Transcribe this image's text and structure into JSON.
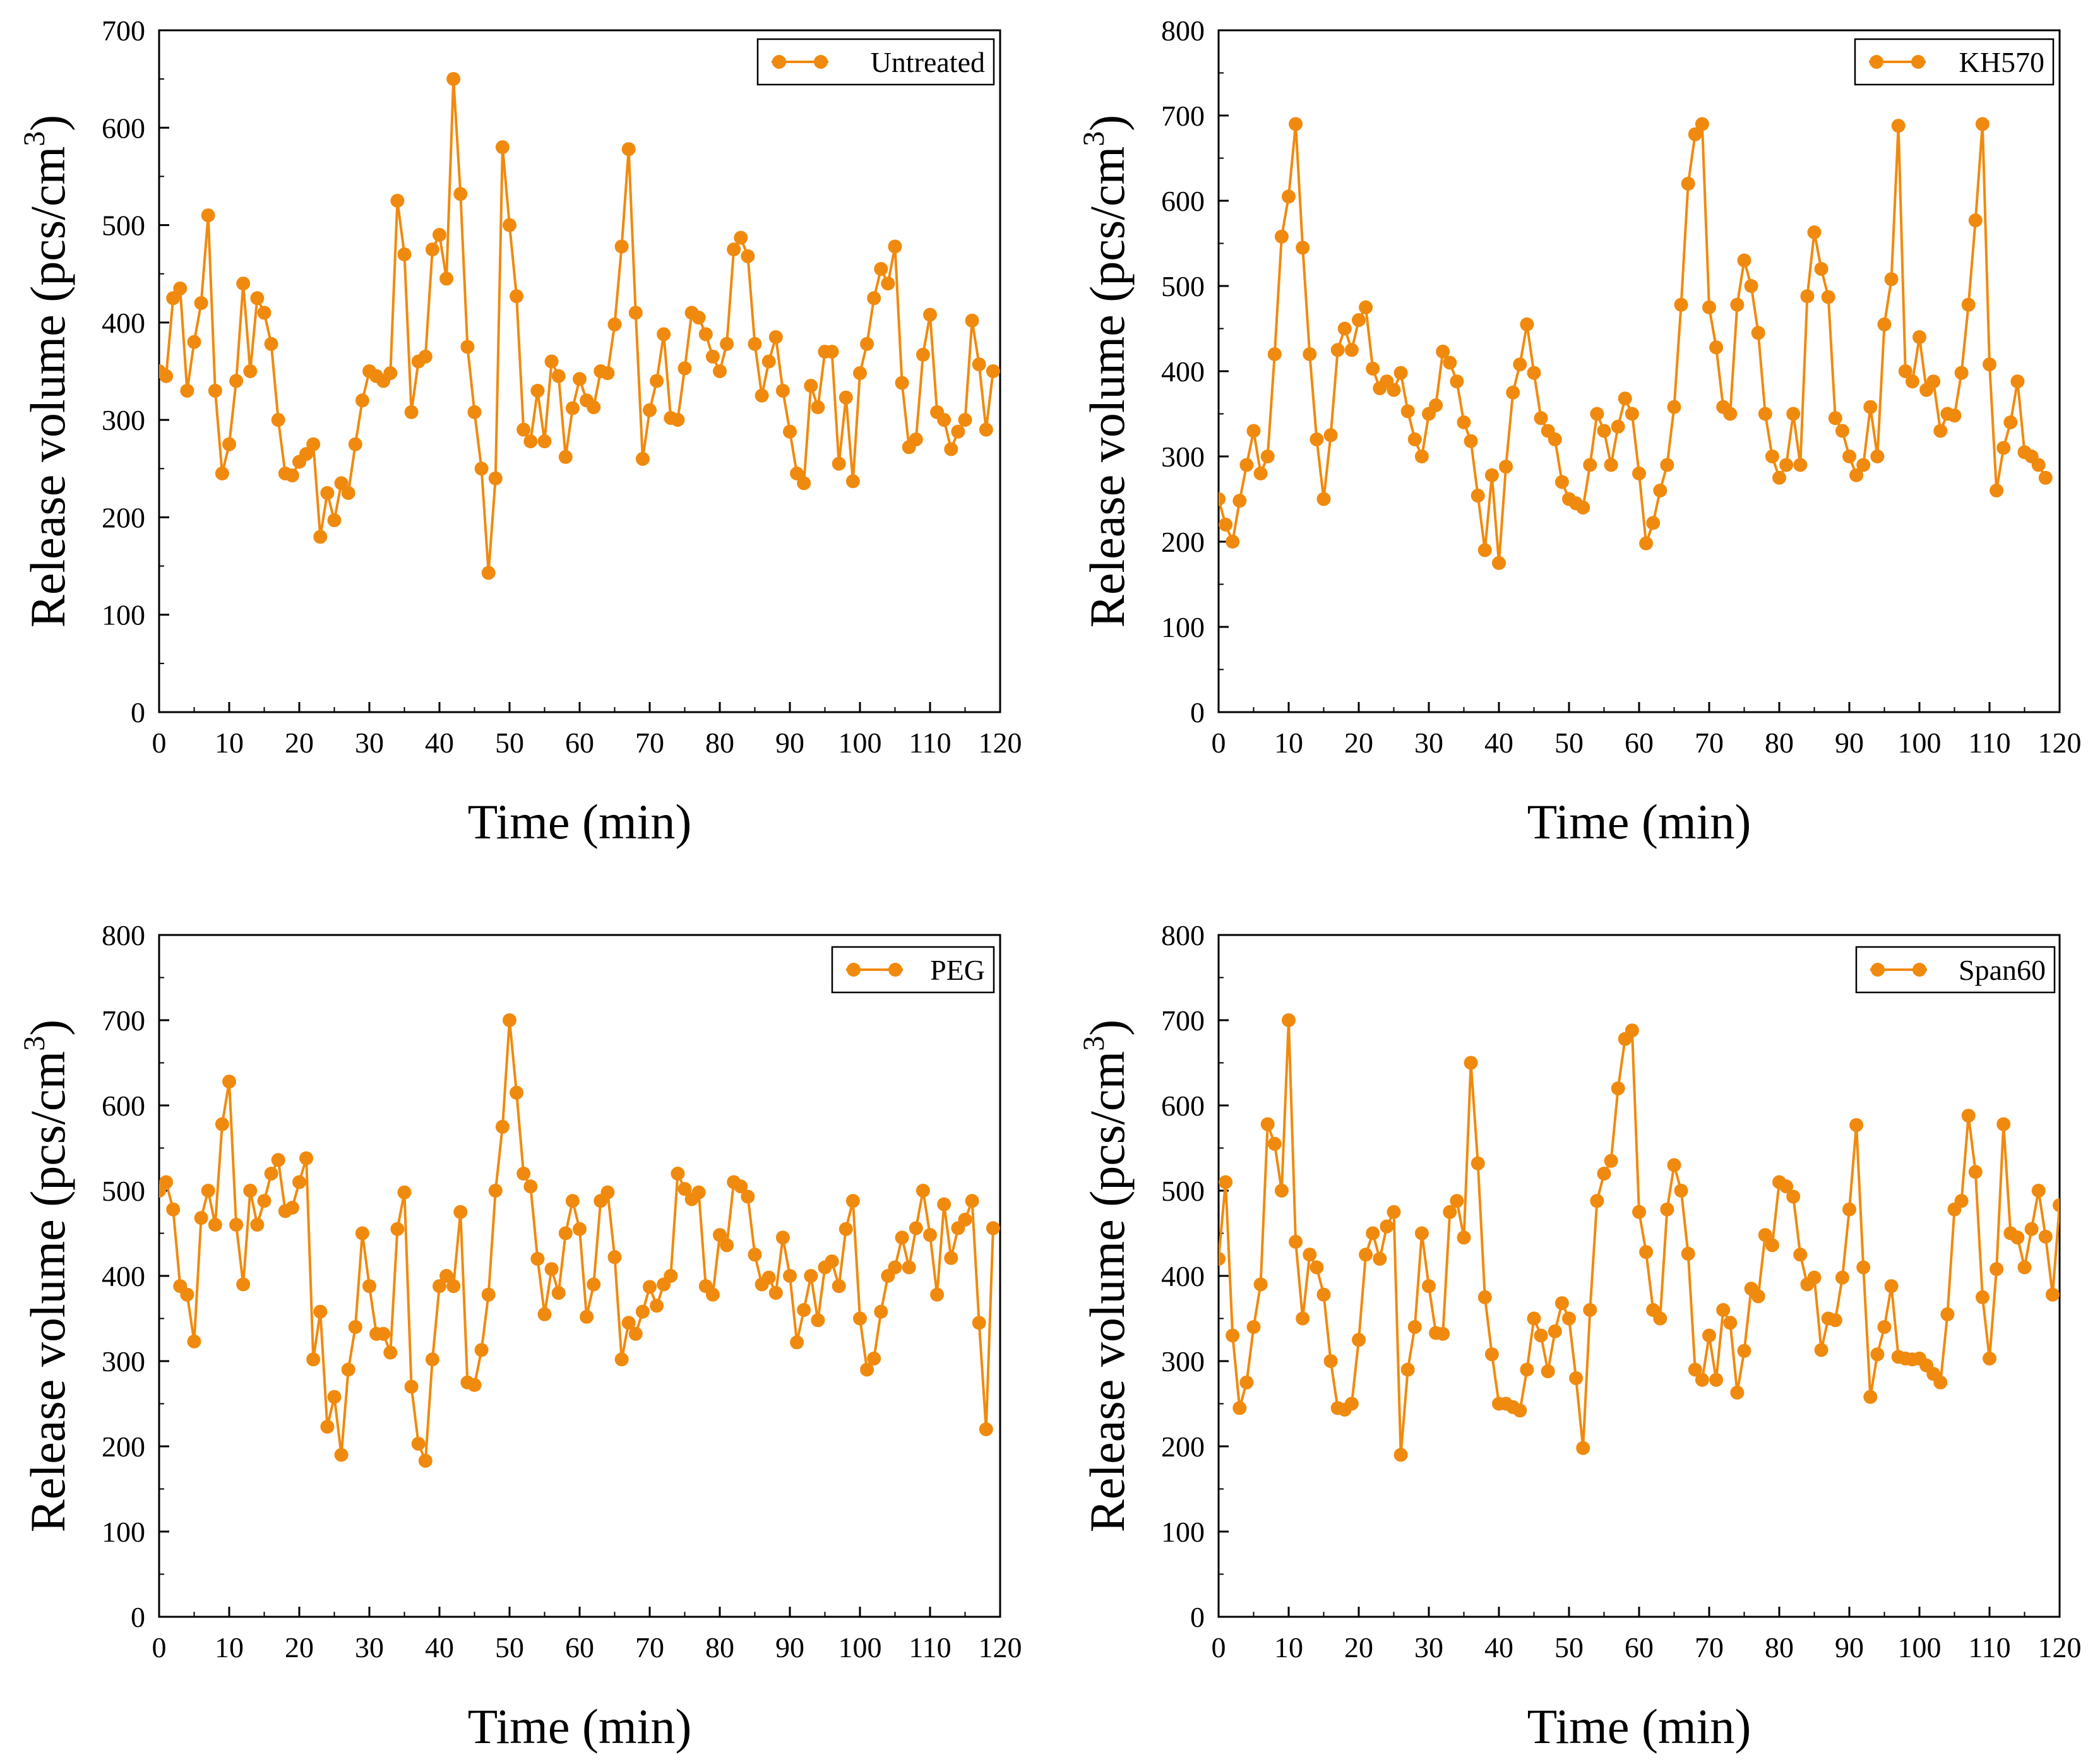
{
  "chart_data": [
    {
      "type": "line",
      "series_name": "Untreated",
      "color": "#F08A0E",
      "xlabel": "Time (min)",
      "ylabel_main": "Release volume (pcs/cm",
      "ylabel_sup": "3",
      "ylabel_close": ")",
      "xlim": [
        0,
        120
      ],
      "ylim": [
        0,
        700
      ],
      "xticks": [
        0,
        10,
        20,
        30,
        40,
        50,
        60,
        70,
        80,
        90,
        100,
        110,
        120
      ],
      "yticks": [
        0,
        100,
        200,
        300,
        400,
        500,
        600,
        700
      ],
      "values": [
        350,
        345,
        425,
        435,
        330,
        380,
        420,
        510,
        330,
        245,
        275,
        340,
        440,
        350,
        425,
        410,
        378,
        300,
        245,
        243,
        257,
        265,
        275,
        180,
        225,
        197,
        235,
        225,
        275,
        320,
        350,
        345,
        340,
        348,
        525,
        470,
        308,
        360,
        365,
        475,
        490,
        445,
        650,
        532,
        375,
        308,
        250,
        143,
        240,
        580,
        500,
        427,
        290,
        278,
        330,
        278,
        360,
        345,
        262,
        312,
        342,
        320,
        313,
        350,
        348,
        398,
        478,
        578,
        410,
        260,
        310,
        340,
        388,
        302,
        300,
        353,
        410,
        405,
        388,
        365,
        350,
        378,
        475,
        487,
        468,
        378,
        325,
        360,
        385,
        330,
        288,
        245,
        235,
        335,
        313,
        370,
        370,
        255,
        323,
        237,
        348,
        378,
        425,
        455,
        440,
        478,
        338,
        272,
        280,
        367,
        408,
        308,
        300,
        270,
        288,
        300,
        402,
        357,
        290,
        350
      ]
    },
    {
      "type": "line",
      "series_name": "KH570",
      "color": "#F08A0E",
      "xlabel": "Time (min)",
      "ylabel_main": "Release volume (pcs/cm",
      "ylabel_sup": "3",
      "ylabel_close": ")",
      "xlim": [
        0,
        120
      ],
      "ylim": [
        0,
        800
      ],
      "xticks": [
        0,
        10,
        20,
        30,
        40,
        50,
        60,
        70,
        80,
        90,
        100,
        110,
        120
      ],
      "yticks": [
        0,
        100,
        200,
        300,
        400,
        500,
        600,
        700,
        800
      ],
      "values": [
        250,
        220,
        200,
        248,
        290,
        330,
        280,
        300,
        420,
        558,
        605,
        690,
        545,
        420,
        320,
        250,
        325,
        425,
        450,
        425,
        460,
        475,
        403,
        380,
        388,
        378,
        398,
        353,
        320,
        300,
        350,
        360,
        423,
        410,
        388,
        340,
        318,
        254,
        190,
        278,
        175,
        288,
        375,
        408,
        455,
        398,
        345,
        330,
        320,
        270,
        250,
        245,
        240,
        290,
        350,
        330,
        290,
        335,
        368,
        350,
        280,
        198,
        222,
        260,
        290,
        358,
        478,
        620,
        678,
        690,
        475,
        428,
        358,
        350,
        478,
        530,
        500,
        445,
        350,
        300,
        275,
        290,
        350,
        290,
        488,
        563,
        520,
        487,
        345,
        330,
        300,
        278,
        290,
        358,
        300,
        455,
        508,
        688,
        400,
        388,
        440,
        378,
        388,
        330,
        350,
        348,
        398,
        478,
        577,
        690,
        408,
        260,
        310,
        340,
        388,
        305,
        300,
        290,
        275
      ]
    },
    {
      "type": "line",
      "series_name": "PEG",
      "color": "#F08A0E",
      "xlabel": "Time (min)",
      "ylabel_main": "Release volume (pcs/cm",
      "ylabel_sup": "3",
      "ylabel_close": ")",
      "xlim": [
        0,
        120
      ],
      "ylim": [
        0,
        800
      ],
      "xticks": [
        0,
        10,
        20,
        30,
        40,
        50,
        60,
        70,
        80,
        90,
        100,
        110,
        120
      ],
      "yticks": [
        0,
        100,
        200,
        300,
        400,
        500,
        600,
        700,
        800
      ],
      "values": [
        500,
        510,
        478,
        388,
        378,
        323,
        468,
        500,
        460,
        578,
        628,
        460,
        390,
        500,
        460,
        488,
        520,
        536,
        476,
        480,
        510,
        538,
        302,
        358,
        223,
        258,
        190,
        290,
        340,
        450,
        388,
        332,
        332,
        310,
        455,
        498,
        270,
        203,
        183,
        302,
        388,
        400,
        388,
        475,
        275,
        272,
        313,
        378,
        500,
        575,
        700,
        615,
        520,
        505,
        420,
        355,
        408,
        380,
        450,
        488,
        455,
        352,
        390,
        488,
        498,
        422,
        302,
        345,
        332,
        358,
        387,
        365,
        390,
        400,
        520,
        502,
        490,
        498,
        388,
        378,
        448,
        436,
        510,
        505,
        493,
        425,
        390,
        398,
        380,
        445,
        400,
        322,
        360,
        400,
        348,
        410,
        417,
        388,
        455,
        488,
        350,
        290,
        303,
        358,
        400,
        410,
        445,
        410,
        456,
        500,
        448,
        378,
        484,
        421,
        456,
        466,
        488,
        345,
        220,
        456
      ]
    },
    {
      "type": "line",
      "series_name": "Span60",
      "color": "#F08A0E",
      "xlabel": "Time (min)",
      "ylabel_main": "Release volume (pcs/cm",
      "ylabel_sup": "3",
      "ylabel_close": ")",
      "xlim": [
        0,
        120
      ],
      "ylim": [
        0,
        800
      ],
      "xticks": [
        0,
        10,
        20,
        30,
        40,
        50,
        60,
        70,
        80,
        90,
        100,
        110,
        120
      ],
      "yticks": [
        0,
        100,
        200,
        300,
        400,
        500,
        600,
        700,
        800
      ],
      "values": [
        420,
        510,
        330,
        245,
        275,
        340,
        390,
        578,
        555,
        500,
        700,
        440,
        350,
        425,
        410,
        378,
        300,
        245,
        243,
        250,
        325,
        425,
        450,
        420,
        458,
        475,
        190,
        290,
        340,
        450,
        388,
        333,
        332,
        475,
        488,
        445,
        650,
        532,
        375,
        308,
        250,
        250,
        246,
        242,
        290,
        350,
        330,
        288,
        335,
        368,
        350,
        280,
        198,
        360,
        488,
        520,
        535,
        620,
        678,
        688,
        475,
        428,
        360,
        350,
        478,
        530,
        500,
        426,
        290,
        278,
        330,
        278,
        360,
        345,
        263,
        312,
        385,
        376,
        448,
        436,
        510,
        505,
        493,
        425,
        390,
        398,
        313,
        350,
        348,
        398,
        478,
        577,
        410,
        258,
        308,
        340,
        388,
        305,
        303,
        302,
        303,
        295,
        285,
        275,
        355,
        478,
        488,
        588,
        522,
        375,
        303,
        408,
        578,
        450,
        445,
        410,
        455,
        500,
        446,
        378,
        483
      ]
    }
  ]
}
